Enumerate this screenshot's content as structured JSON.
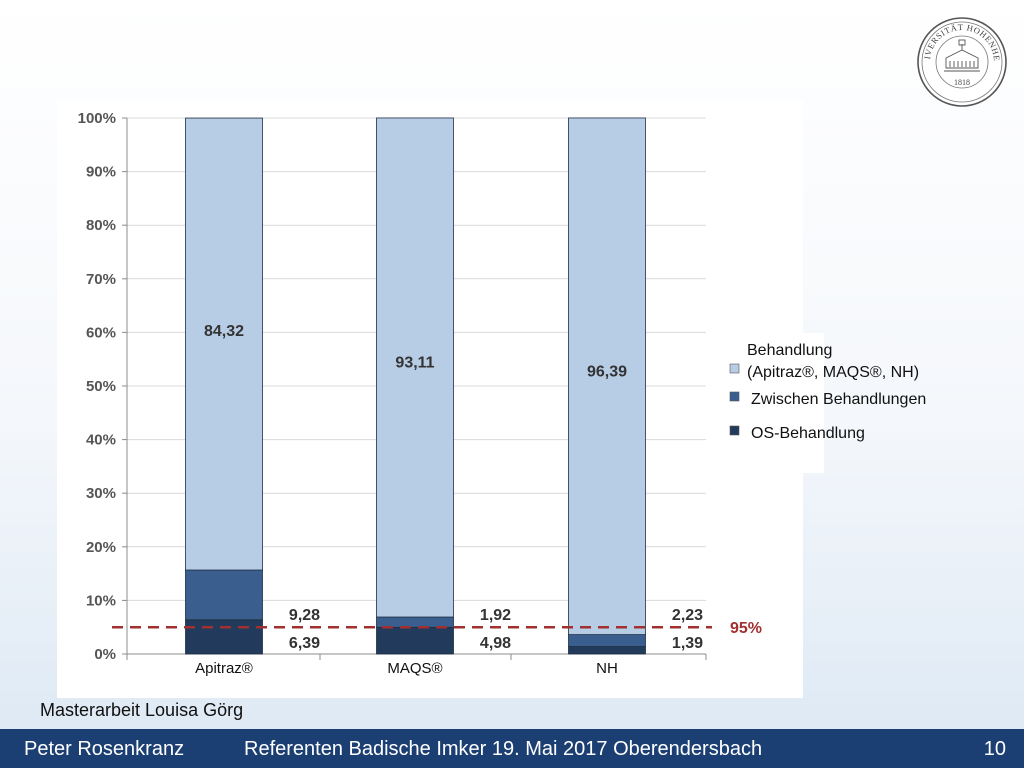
{
  "chart_data": {
    "type": "bar",
    "stacked": true,
    "categories": [
      "Apitraz®",
      "MAQS®",
      "NH"
    ],
    "series": [
      {
        "name": "OS-Behandlung",
        "values": [
          6.39,
          4.98,
          1.39
        ],
        "color": "#223a5c"
      },
      {
        "name": "Zwischen Behandlungen",
        "values": [
          9.28,
          1.92,
          2.23
        ],
        "color": "#3a5f8f"
      },
      {
        "name": "Behandlung (Apitraz®, MAQS®, NH)",
        "values": [
          84.32,
          93.11,
          96.39
        ],
        "color": "#b7cce5"
      }
    ],
    "data_labels": {
      "OS-Behandlung": [
        "6,39",
        "4,98",
        "1,39"
      ],
      "Zwischen Behandlungen": [
        "9,28",
        "1,92",
        "2,23"
      ],
      "Behandlung (Apitraz®, MAQS®, NH)": [
        "84,32",
        "93,11",
        "96,39"
      ]
    },
    "y_ticks": [
      "0%",
      "10%",
      "20%",
      "30%",
      "40%",
      "50%",
      "60%",
      "70%",
      "80%",
      "90%",
      "100%"
    ],
    "ylim": [
      0,
      100
    ],
    "grid": true,
    "reference_line": {
      "value": 5,
      "label": "95%",
      "color": "#a23030"
    },
    "legend": {
      "placement": "right",
      "entries": [
        {
          "lines": [
            "Behandlung",
            "(Apitraz®, MAQS®, NH)"
          ],
          "color": "#b7cce5"
        },
        {
          "lines": [
            "Zwischen Behandlungen"
          ],
          "color": "#3a5f8f"
        },
        {
          "lines": [
            "OS-Behandlung"
          ],
          "color": "#223a5c"
        }
      ]
    }
  },
  "seal": {
    "text": "UNIVERSITÄT HOHENHEIM",
    "year": "1818"
  },
  "credit": "Masterarbeit Louisa Görg",
  "footer": {
    "presenter": "Peter Rosenkranz",
    "event": "Referenten Badische Imker 19. Mai 2017  Oberendersbach",
    "page": "10"
  },
  "colors": {
    "footer_bg": "#1c3f73",
    "grid": "#d9d9d9",
    "axis": "#8c8c8c"
  }
}
